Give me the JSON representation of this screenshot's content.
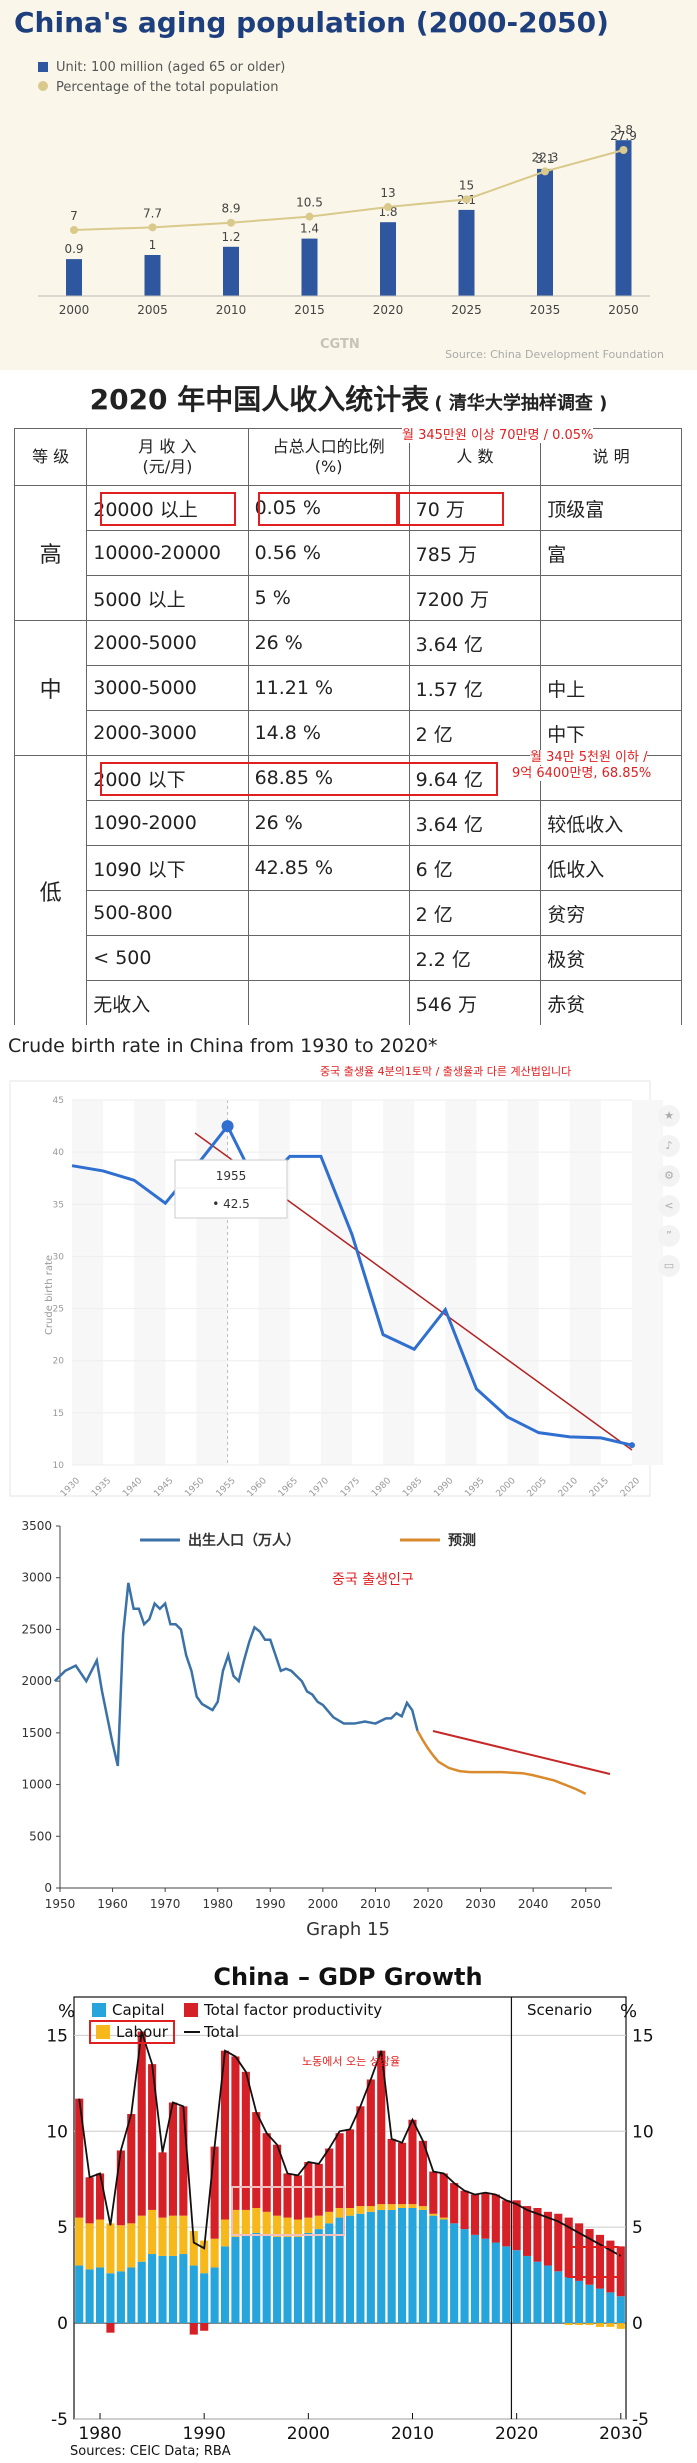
{
  "panel1": {
    "title": "China's aging population (2000-2050)",
    "legend_bar": "Unit: 100 million (aged 65 or older)",
    "legend_line": "Percentage of the total population",
    "logo": "CGTN",
    "source": "Source: China Development Foundation",
    "colors": {
      "bar": "#2f57a0",
      "line": "#d9c98a",
      "bg": "#fbf6ea"
    },
    "chart_data": {
      "type": "bar+line",
      "categories": [
        "2000",
        "2005",
        "2010",
        "2015",
        "2020",
        "2025",
        "2035",
        "2050"
      ],
      "series": [
        {
          "name": "Unit: 100 million (aged 65 or older)",
          "values": [
            0.9,
            1.0,
            1.2,
            1.4,
            1.8,
            2.1,
            3.1,
            3.8
          ]
        },
        {
          "name": "Percentage of the total population",
          "values": [
            7,
            7.7,
            8.9,
            10.5,
            13,
            15,
            22.3,
            27.9
          ]
        }
      ]
    }
  },
  "panel2": {
    "title": "2020 年中国人收入统计表",
    "subtitle": "( 清华大学抽样调查 )",
    "headers": [
      "等 级",
      "月 收 入\n(元/月)",
      "占总人口的比例\n(%)",
      "人 数",
      "说 明"
    ],
    "rows": [
      {
        "group": "高",
        "income": "20000 以上",
        "ratio": "0.05 %",
        "count": "70 万",
        "desc": "顶级富"
      },
      {
        "group": "",
        "income": "10000-20000",
        "ratio": "0.56 %",
        "count": "785 万",
        "desc": "富"
      },
      {
        "group": "",
        "income": "5000 以上",
        "ratio": "5 %",
        "count": "7200 万",
        "desc": ""
      },
      {
        "group": "中",
        "income": "2000-5000",
        "ratio": "26 %",
        "count": "3.64 亿",
        "desc": ""
      },
      {
        "group": "",
        "income": "3000-5000",
        "ratio": "11.21 %",
        "count": "1.57 亿",
        "desc": "中上"
      },
      {
        "group": "",
        "income": "2000-3000",
        "ratio": "14.8 %",
        "count": "2 亿",
        "desc": "中下"
      },
      {
        "group": "低",
        "income": "2000 以下",
        "ratio": "68.85 %",
        "count": "9.64 亿",
        "desc": ""
      },
      {
        "group": "",
        "income": "1090-2000",
        "ratio": "26 %",
        "count": "3.64 亿",
        "desc": "较低收入"
      },
      {
        "group": "",
        "income": "1090 以下",
        "ratio": "42.85 %",
        "count": "6 亿",
        "desc": "低收入"
      },
      {
        "group": "",
        "income": "500-800",
        "ratio": "",
        "count": "2 亿",
        "desc": "贫穷"
      },
      {
        "group": "",
        "income": "< 500",
        "ratio": "",
        "count": "2.2 亿",
        "desc": "极贫"
      },
      {
        "group": "",
        "income": "无收入",
        "ratio": "",
        "count": "546 万",
        "desc": "赤贫"
      }
    ],
    "note_top": "월 345만원 이상 70만명 / 0.05%",
    "note_low_1": "월 34만 5천원 이하 /",
    "note_low_2": "9억 6400만명, 68.85%"
  },
  "panel3": {
    "title": "Crude birth rate in China from 1930 to 2020*",
    "note": "중국 출생율 4분의1토막 / 출생율과 다른 계산법입니다",
    "ylabel": "Crude birth rate",
    "tooltip_year": "1955",
    "tooltip_value": "• 42.5",
    "colors": {
      "line": "#2f6fd0",
      "trend": "#b22222"
    },
    "chart_data": {
      "type": "line",
      "x": [
        1930,
        1935,
        1940,
        1945,
        1950,
        1955,
        1960,
        1965,
        1970,
        1975,
        1980,
        1985,
        1990,
        1995,
        2000,
        2005,
        2010,
        2015,
        2020
      ],
      "series": [
        {
          "name": "",
          "values": [
            38.7,
            38.2,
            37.3,
            35.1,
            38.7,
            42.5,
            36.5,
            39.6,
            39.6,
            32.1,
            22.5,
            21.1,
            24.9,
            17.3,
            14.6,
            13.1,
            12.7,
            12.6,
            11.9
          ]
        }
      ],
      "xlim": [
        1930,
        2020
      ],
      "ylim": [
        10,
        45
      ],
      "yticks": [
        10,
        15,
        20,
        25,
        30,
        35,
        40,
        45
      ]
    }
  },
  "panel4": {
    "legend_actual": "出生人口（万人）",
    "legend_forecast": "预测",
    "note": "중국 출생인구",
    "caption": "Graph 15",
    "colors": {
      "actual": "#3a72a8",
      "forecast": "#d98a2c",
      "trend": "#c62828"
    },
    "chart_data": {
      "type": "line",
      "series": [
        {
          "name": "出生人口（万人）",
          "x": [
            1949,
            1951,
            1953,
            1955,
            1957,
            1958,
            1959,
            1960,
            1961,
            1962,
            1963,
            1964,
            1965,
            1966,
            1967,
            1968,
            1969,
            1970,
            1971,
            1972,
            1973,
            1974,
            1975,
            1976,
            1977,
            1978,
            1979,
            1980,
            1981,
            1982,
            1983,
            1984,
            1985,
            1986,
            1987,
            1988,
            1989,
            1990,
            1991,
            1992,
            1993,
            1994,
            1995,
            1996,
            1997,
            1998,
            1999,
            2000,
            2002,
            2004,
            2006,
            2008,
            2010,
            2012,
            2013,
            2014,
            2015,
            2016,
            2017,
            2018
          ],
          "values": [
            2000,
            2100,
            2150,
            2000,
            2200,
            1900,
            1650,
            1400,
            1180,
            2450,
            2950,
            2700,
            2700,
            2550,
            2600,
            2750,
            2700,
            2750,
            2550,
            2550,
            2500,
            2250,
            2100,
            1850,
            1780,
            1750,
            1720,
            1800,
            2100,
            2250,
            2050,
            2000,
            2200,
            2380,
            2520,
            2480,
            2400,
            2400,
            2250,
            2100,
            2120,
            2100,
            2050,
            2000,
            1900,
            1870,
            1800,
            1770,
            1650,
            1590,
            1590,
            1610,
            1590,
            1640,
            1640,
            1690,
            1660,
            1790,
            1720,
            1520
          ]
        },
        {
          "name": "预测",
          "x": [
            2018,
            2019,
            2020,
            2021,
            2022,
            2024,
            2026,
            2028,
            2030,
            2034,
            2038,
            2040,
            2044,
            2048,
            2050
          ],
          "values": [
            1520,
            1430,
            1350,
            1280,
            1220,
            1160,
            1130,
            1120,
            1120,
            1120,
            1110,
            1090,
            1040,
            960,
            910
          ]
        }
      ],
      "xlim": [
        1950,
        2055
      ],
      "ylim": [
        0,
        3500
      ],
      "xticks": [
        1950,
        1960,
        1970,
        1980,
        1990,
        2000,
        2010,
        2020,
        2030,
        2040,
        2050
      ],
      "yticks": [
        0,
        500,
        1000,
        1500,
        2000,
        2500,
        3000,
        3500
      ]
    }
  },
  "panel5": {
    "title": "China – GDP Growth",
    "legend": {
      "capital": "Capital",
      "tfp": "Total factor productivity",
      "labour": "Labour",
      "total": "Total"
    },
    "scenario_label": "Scenario",
    "pct_left": "%",
    "pct_right": "%",
    "note": "노동에서 오는 성장율",
    "source": "Sources: CEIC Data; RBA",
    "colors": {
      "capital": "#26a5dc",
      "tfp": "#d62027",
      "labour": "#f7b81c",
      "total": "#111111"
    },
    "chart_data": {
      "type": "bar",
      "stacked": true,
      "x": [
        1978,
        1979,
        1980,
        1981,
        1982,
        1983,
        1984,
        1985,
        1986,
        1987,
        1988,
        1989,
        1990,
        1991,
        1992,
        1993,
        1994,
        1995,
        1996,
        1997,
        1998,
        1999,
        2000,
        2001,
        2002,
        2003,
        2004,
        2005,
        2006,
        2007,
        2008,
        2009,
        2010,
        2011,
        2012,
        2013,
        2014,
        2015,
        2016,
        2017,
        2018,
        2019,
        2020,
        2021,
        2022,
        2023,
        2024,
        2025,
        2026,
        2027,
        2028,
        2029,
        2030
      ],
      "series": [
        {
          "name": "Capital",
          "values": [
            3.0,
            2.8,
            2.9,
            2.6,
            2.7,
            2.9,
            3.2,
            3.6,
            3.5,
            3.5,
            3.6,
            3.0,
            2.6,
            2.9,
            4.0,
            4.5,
            4.6,
            4.7,
            4.6,
            4.5,
            4.5,
            4.5,
            4.7,
            4.9,
            5.2,
            5.5,
            5.6,
            5.7,
            5.8,
            5.9,
            5.9,
            6.0,
            6.0,
            5.9,
            5.6,
            5.4,
            5.2,
            4.9,
            4.6,
            4.4,
            4.2,
            4.0,
            3.8,
            3.5,
            3.2,
            3.0,
            2.7,
            2.4,
            2.2,
            2.0,
            1.8,
            1.6,
            1.4
          ]
        },
        {
          "name": "Labour",
          "values": [
            2.5,
            2.4,
            2.5,
            2.6,
            2.4,
            2.3,
            2.4,
            2.3,
            2.0,
            2.1,
            2.0,
            1.8,
            1.7,
            1.5,
            1.4,
            1.4,
            1.3,
            1.3,
            1.2,
            1.1,
            1.0,
            0.9,
            0.8,
            0.7,
            0.6,
            0.5,
            0.4,
            0.4,
            0.3,
            0.3,
            0.3,
            0.2,
            0.2,
            0.2,
            0.1,
            0.1,
            0.0,
            0.0,
            0.0,
            0.0,
            0.0,
            0.0,
            0.0,
            0.0,
            0.0,
            0.0,
            0.0,
            -0.1,
            -0.1,
            -0.1,
            -0.2,
            -0.2,
            -0.3
          ]
        },
        {
          "name": "Total factor productivity",
          "values": [
            6.2,
            2.4,
            2.4,
            -0.5,
            3.9,
            5.7,
            9.6,
            7.6,
            3.4,
            5.9,
            5.7,
            -0.6,
            -0.4,
            4.8,
            8.8,
            8.0,
            7.2,
            5.0,
            4.1,
            3.7,
            2.3,
            2.3,
            2.9,
            2.7,
            3.3,
            3.9,
            4.1,
            5.2,
            6.6,
            8.0,
            3.4,
            3.2,
            4.4,
            3.4,
            2.2,
            2.3,
            2.1,
            2.0,
            2.1,
            2.4,
            2.5,
            2.4,
            2.6,
            2.6,
            2.8,
            2.8,
            3.0,
            3.1,
            3.0,
            2.9,
            2.8,
            2.7,
            2.6
          ]
        },
        {
          "name": "Total",
          "values": [
            11.7,
            7.6,
            7.8,
            5.1,
            9.0,
            10.9,
            15.2,
            13.5,
            8.9,
            11.5,
            11.3,
            4.2,
            3.9,
            9.2,
            14.2,
            13.9,
            13.1,
            11.0,
            9.9,
            9.3,
            7.8,
            7.7,
            8.4,
            8.3,
            9.1,
            10.0,
            10.1,
            11.3,
            12.7,
            14.2,
            9.6,
            9.4,
            10.6,
            9.5,
            7.9,
            7.8,
            7.3,
            6.9,
            6.7,
            6.8,
            6.7,
            6.4,
            6.2,
            5.9,
            5.7,
            5.5,
            5.3,
            5.0,
            4.7,
            4.4,
            4.1,
            3.8,
            3.5
          ]
        }
      ],
      "xlim": [
        1977.5,
        2030.5
      ],
      "ylim": [
        -5,
        17
      ],
      "yticks": [
        -5,
        0,
        5,
        10,
        15
      ],
      "xticks": [
        1980,
        1990,
        2000,
        2010,
        2020,
        2030
      ],
      "scenario_start": 2019.5
    }
  }
}
